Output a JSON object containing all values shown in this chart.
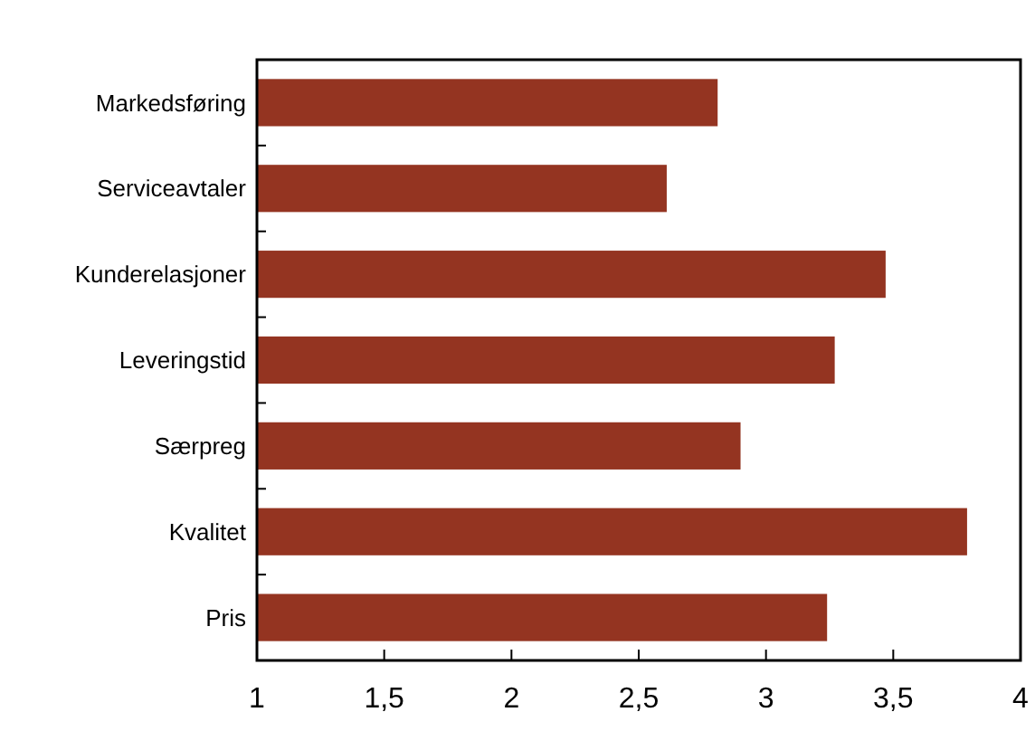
{
  "chart_data": {
    "type": "bar",
    "orientation": "horizontal",
    "categories": [
      "Markedsføring",
      "Serviceavtaler",
      "Kunderelasjoner",
      "Leveringstid",
      "Særpreg",
      "Kvalitet",
      "Pris"
    ],
    "values": [
      2.81,
      2.61,
      3.47,
      3.27,
      2.9,
      3.79,
      3.24
    ],
    "color": "#943421",
    "xlim": [
      1,
      4
    ],
    "xticks": [
      1,
      {
        "value": 1.5,
        "label": "1,5"
      },
      2,
      {
        "value": 2.5,
        "label": "2,5"
      },
      3,
      {
        "value": 3.5,
        "label": "3,5"
      },
      4
    ],
    "grid": false
  }
}
